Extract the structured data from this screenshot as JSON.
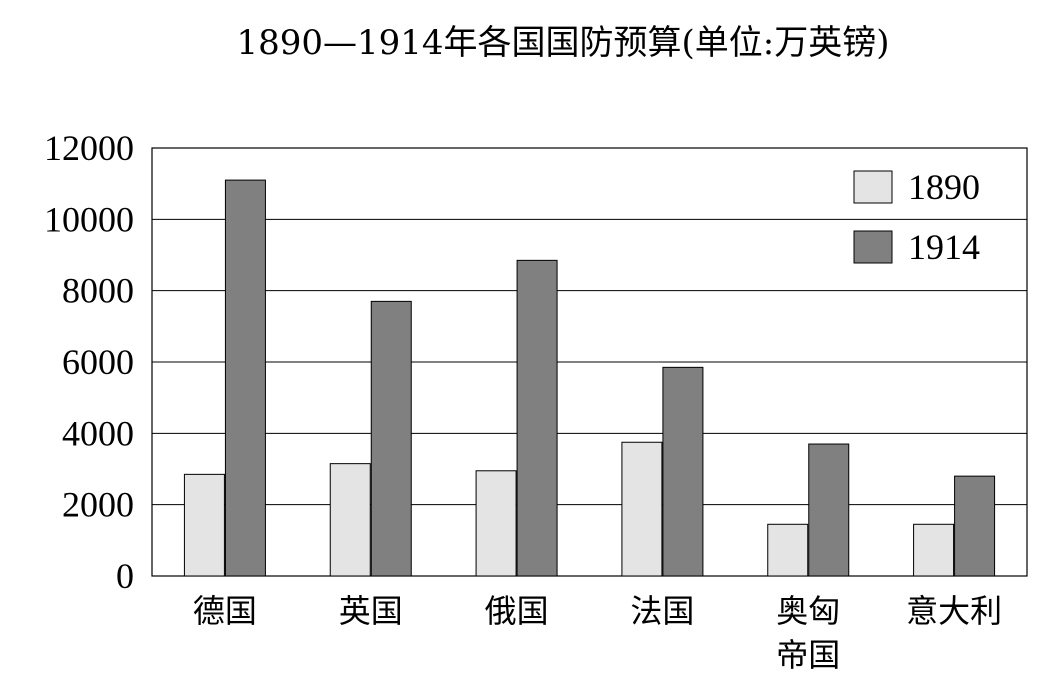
{
  "chart_data": {
    "type": "bar",
    "title": "1890—1914年各国国防预算(单位:万英镑)",
    "categories": [
      "德国",
      "英国",
      "俄国",
      "法国",
      "奥匈帝国",
      "意大利"
    ],
    "category_lines": [
      [
        "德国"
      ],
      [
        "英国"
      ],
      [
        "俄国"
      ],
      [
        "法国"
      ],
      [
        "奥匈",
        "帝国"
      ],
      [
        "意大利"
      ]
    ],
    "series": [
      {
        "name": "1890",
        "values": [
          2850,
          3150,
          2950,
          3750,
          1450,
          1450
        ],
        "color": "#e4e4e4"
      },
      {
        "name": "1914",
        "values": [
          11100,
          7700,
          8850,
          5850,
          3700,
          2800
        ],
        "color": "#808080"
      }
    ],
    "ylim": [
      0,
      12000
    ],
    "yticks": [
      "0",
      "2000",
      "4000",
      "6000",
      "8000",
      "10000",
      "12000"
    ],
    "grid": true,
    "legend_position": "top-right"
  }
}
